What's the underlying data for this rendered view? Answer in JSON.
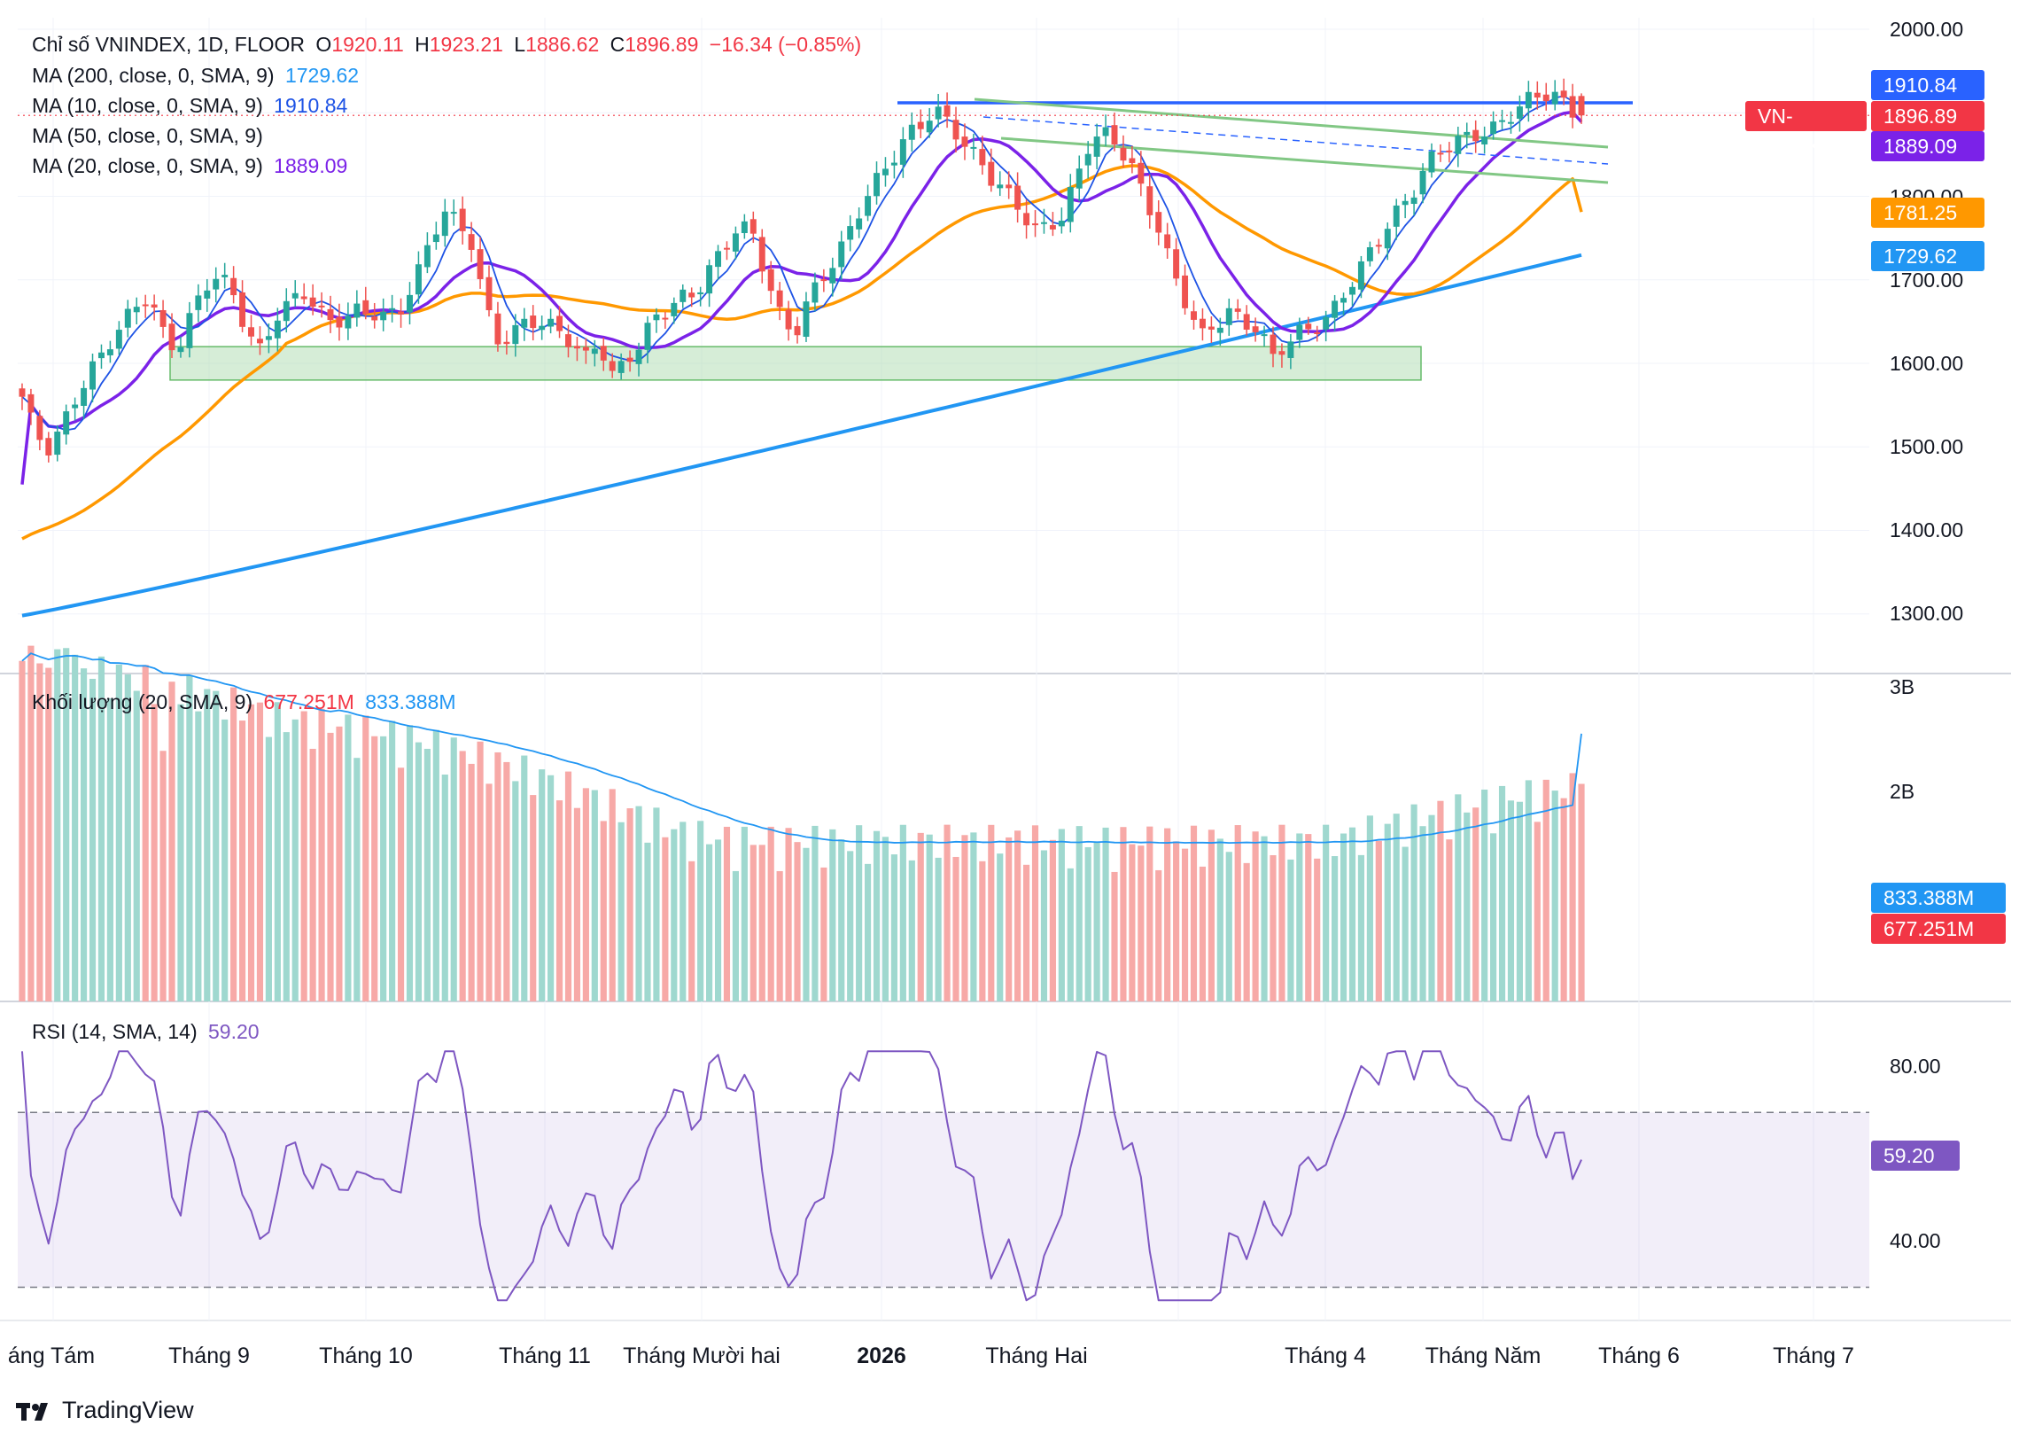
{
  "header": {
    "symbol": "Chỉ số VNINDEX, 1D, FLOOR",
    "o_label": "O",
    "o_value": "1920.11",
    "h_label": "H",
    "h_value": "1923.21",
    "l_label": "L",
    "l_value": "1886.62",
    "c_label": "C",
    "c_value": "1896.89",
    "change": "−16.34 (−0.85%)"
  },
  "indicators": {
    "ma200": {
      "label": "MA (200, close, 0, SMA, 9)",
      "value": "1729.62",
      "color": "#2196f3"
    },
    "ma10": {
      "label": "MA (10, close, 0, SMA, 9)",
      "value": "1910.84",
      "color": "#1e53e5"
    },
    "ma50": {
      "label": "MA (50, close, 0, SMA, 9)",
      "value": "",
      "color": "#ff9800"
    },
    "ma20": {
      "label": "MA (20, close, 0, SMA, 9)",
      "value": "1889.09",
      "color": "#7b22e8"
    },
    "volume": {
      "label": "Khối lượng (20, SMA, 9)",
      "value1": "677.251M",
      "value2": "833.388M"
    },
    "rsi": {
      "label": "RSI (14, SMA, 14)",
      "value": "59.20",
      "color": "#7e57c2"
    }
  },
  "price_tags": {
    "ma10": {
      "text": "1910.84",
      "color": "#2962ff"
    },
    "symbol_name": {
      "text": "VN-INDEX",
      "color": "#f23645"
    },
    "last": {
      "text": "1896.89",
      "color": "#f23645"
    },
    "ma20": {
      "text": "1889.09",
      "color": "#7b22e8"
    },
    "ma50": {
      "text": "1781.25",
      "color": "#ff9800"
    },
    "ma200": {
      "text": "1729.62",
      "color": "#2196f3"
    },
    "vol_ma": {
      "text": "833.388M",
      "color": "#2196f3"
    },
    "vol": {
      "text": "677.251M",
      "color": "#f23645"
    },
    "rsi": {
      "text": "59.20",
      "color": "#7e57c2"
    }
  },
  "y_axis_price": [
    "2000.00",
    "1800.00",
    "1700.00",
    "1600.00",
    "1500.00",
    "1400.00",
    "1300.00"
  ],
  "y_axis_volume": [
    "3B",
    "2B"
  ],
  "y_axis_rsi": [
    "80.00",
    "40.00"
  ],
  "x_axis": [
    "áng Tám",
    "Tháng 9",
    "Tháng 10",
    "Tháng 11",
    "Tháng Mười hai",
    "2026",
    "Tháng Hai",
    "Tháng 4",
    "Tháng Năm",
    "Tháng 6",
    "Tháng 7"
  ],
  "brand": "TradingView",
  "colors": {
    "up": "#26a69a",
    "down": "#ef5350",
    "up_vol": "#9fd8cf",
    "down_vol": "#f7a9a7",
    "zone": "#a5d6a7",
    "channel": "#81c784",
    "resistance": "#2962ff"
  },
  "chart_data": {
    "type": "candlestick",
    "interval": "1D",
    "last_candle": {
      "open": 1920.11,
      "high": 1923.21,
      "low": 1886.62,
      "close": 1896.89
    },
    "price_range": [
      1280,
      2010
    ],
    "close_series_approx": [
      1560,
      1510,
      1490,
      1530,
      1570,
      1600,
      1620,
      1640,
      1660,
      1680,
      1640,
      1620,
      1660,
      1690,
      1700,
      1680,
      1640,
      1620,
      1660,
      1670,
      1680,
      1660,
      1650,
      1660,
      1670,
      1660,
      1650,
      1660,
      1700,
      1750,
      1790,
      1770,
      1740,
      1660,
      1620,
      1640,
      1660,
      1650,
      1640,
      1620,
      1600,
      1630,
      1590,
      1610,
      1620,
      1650,
      1660,
      1680,
      1690,
      1720,
      1740,
      1760,
      1750,
      1700,
      1660,
      1640,
      1680,
      1700,
      1720,
      1760,
      1800,
      1830,
      1850,
      1870,
      1880,
      1900,
      1890,
      1870,
      1850,
      1820,
      1800,
      1780,
      1760,
      1770,
      1780,
      1820,
      1860,
      1870,
      1860,
      1840,
      1800,
      1760,
      1700,
      1660,
      1630,
      1650,
      1670,
      1650,
      1640,
      1600,
      1620,
      1640,
      1650,
      1660,
      1680,
      1700,
      1730,
      1760,
      1790,
      1810,
      1840,
      1850,
      1860,
      1870,
      1880,
      1890,
      1900,
      1910,
      1915,
      1920,
      1910,
      1897
    ],
    "ma10_last": 1910.84,
    "ma20_last": 1889.09,
    "ma50_last": 1781.25,
    "ma200_last": 1729.62,
    "volume_range": [
      0,
      3000
    ],
    "volume_ma_last_M": 833.388,
    "volume_last_M": 677.251,
    "rsi_range": [
      20,
      100
    ],
    "rsi_bands": [
      70,
      30
    ],
    "rsi_last": 59.2,
    "support_zone": [
      1580,
      1620
    ],
    "resistance_level": 1912
  }
}
